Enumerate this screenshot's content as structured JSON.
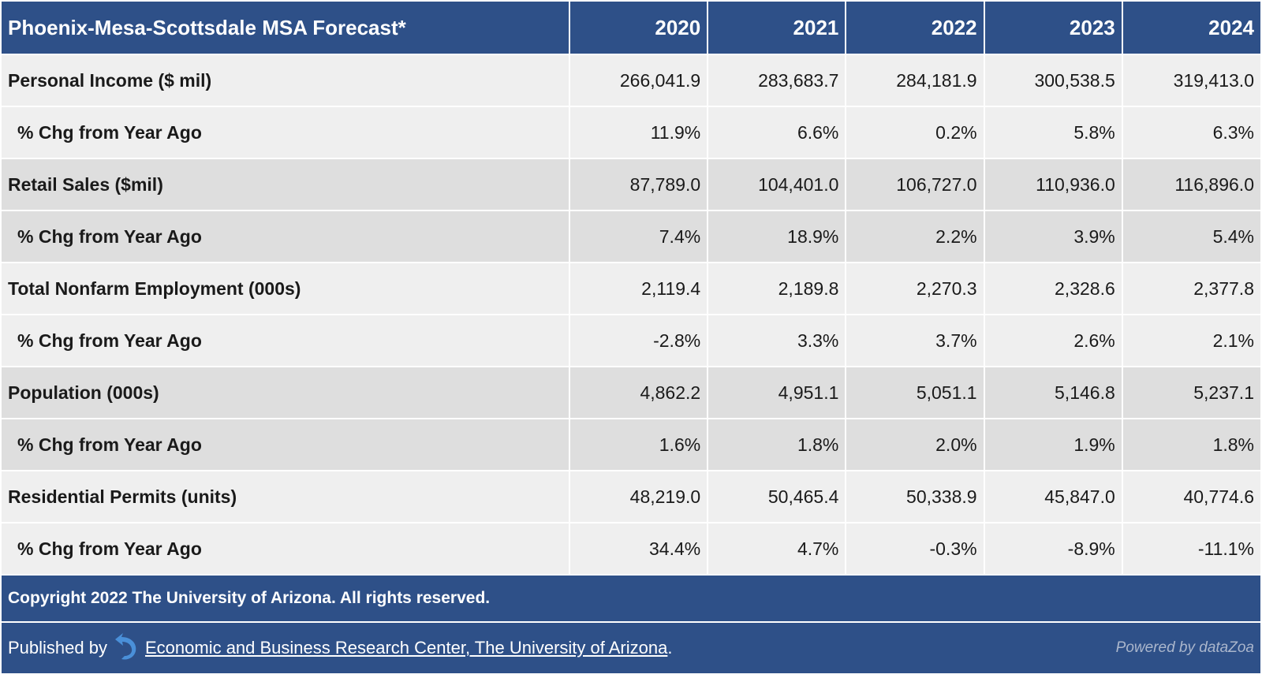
{
  "table": {
    "title": "Phoenix-Mesa-Scottsdale MSA Forecast*",
    "years": [
      "2020",
      "2021",
      "2022",
      "2023",
      "2024"
    ],
    "rows": [
      {
        "label": "Personal Income ($ mil)",
        "values": [
          "266,041.9",
          "283,683.7",
          "284,181.9",
          "300,538.5",
          "319,413.0"
        ]
      },
      {
        "label": "% Chg from Year Ago",
        "values": [
          "11.9%",
          "6.6%",
          "0.2%",
          "5.8%",
          "6.3%"
        ]
      },
      {
        "label": "Retail Sales ($mil)",
        "values": [
          "87,789.0",
          "104,401.0",
          "106,727.0",
          "110,936.0",
          "116,896.0"
        ]
      },
      {
        "label": "% Chg from Year Ago",
        "values": [
          "7.4%",
          "18.9%",
          "2.2%",
          "3.9%",
          "5.4%"
        ]
      },
      {
        "label": "Total Nonfarm Employment (000s)",
        "values": [
          "2,119.4",
          "2,189.8",
          "2,270.3",
          "2,328.6",
          "2,377.8"
        ]
      },
      {
        "label": "% Chg from Year Ago",
        "values": [
          "-2.8%",
          "3.3%",
          "3.7%",
          "2.6%",
          "2.1%"
        ]
      },
      {
        "label": "Population (000s)",
        "values": [
          "4,862.2",
          "4,951.1",
          "5,051.1",
          "5,146.8",
          "5,237.1"
        ]
      },
      {
        "label": "% Chg from Year Ago",
        "values": [
          "1.6%",
          "1.8%",
          "2.0%",
          "1.9%",
          "1.8%"
        ]
      },
      {
        "label": "Residential Permits (units)",
        "values": [
          "48,219.0",
          "50,465.4",
          "50,338.9",
          "45,847.0",
          "40,774.6"
        ]
      },
      {
        "label": "% Chg from Year Ago",
        "values": [
          "34.4%",
          "4.7%",
          "-0.3%",
          "-8.9%",
          "-11.1%"
        ]
      }
    ]
  },
  "footer": {
    "copyright": "Copyright 2022 The University of Arizona. All rights reserved.",
    "published_by": "Published by",
    "publisher_link": "Economic and Business Research Center, The University of Arizona",
    "period": ".",
    "powered_by": "Powered by dataZoa",
    "logo_icon": "datazoa-arrow-icon"
  },
  "colors": {
    "header_bg": "#2e5088",
    "row_light": "#efefef",
    "row_dark": "#dedede"
  },
  "chart_data": {
    "type": "table",
    "title": "Phoenix-Mesa-Scottsdale MSA Forecast*",
    "columns": [
      "2020",
      "2021",
      "2022",
      "2023",
      "2024"
    ],
    "rows": [
      {
        "name": "Personal Income ($ mil)",
        "values": [
          266041.9,
          283683.7,
          284181.9,
          300538.5,
          319413.0
        ]
      },
      {
        "name": "% Chg from Year Ago",
        "values": [
          11.9,
          6.6,
          0.2,
          5.8,
          6.3
        ]
      },
      {
        "name": "Retail Sales ($mil)",
        "values": [
          87789.0,
          104401.0,
          106727.0,
          110936.0,
          116896.0
        ]
      },
      {
        "name": "% Chg from Year Ago",
        "values": [
          7.4,
          18.9,
          2.2,
          3.9,
          5.4
        ]
      },
      {
        "name": "Total Nonfarm Employment (000s)",
        "values": [
          2119.4,
          2189.8,
          2270.3,
          2328.6,
          2377.8
        ]
      },
      {
        "name": "% Chg from Year Ago",
        "values": [
          -2.8,
          3.3,
          3.7,
          2.6,
          2.1
        ]
      },
      {
        "name": "Population (000s)",
        "values": [
          4862.2,
          4951.1,
          5051.1,
          5146.8,
          5237.1
        ]
      },
      {
        "name": "% Chg from Year Ago",
        "values": [
          1.6,
          1.8,
          2.0,
          1.9,
          1.8
        ]
      },
      {
        "name": "Residential Permits (units)",
        "values": [
          48219.0,
          50465.4,
          50338.9,
          45847.0,
          40774.6
        ]
      },
      {
        "name": "% Chg from Year Ago",
        "values": [
          34.4,
          4.7,
          -0.3,
          -8.9,
          -11.1
        ]
      }
    ]
  }
}
